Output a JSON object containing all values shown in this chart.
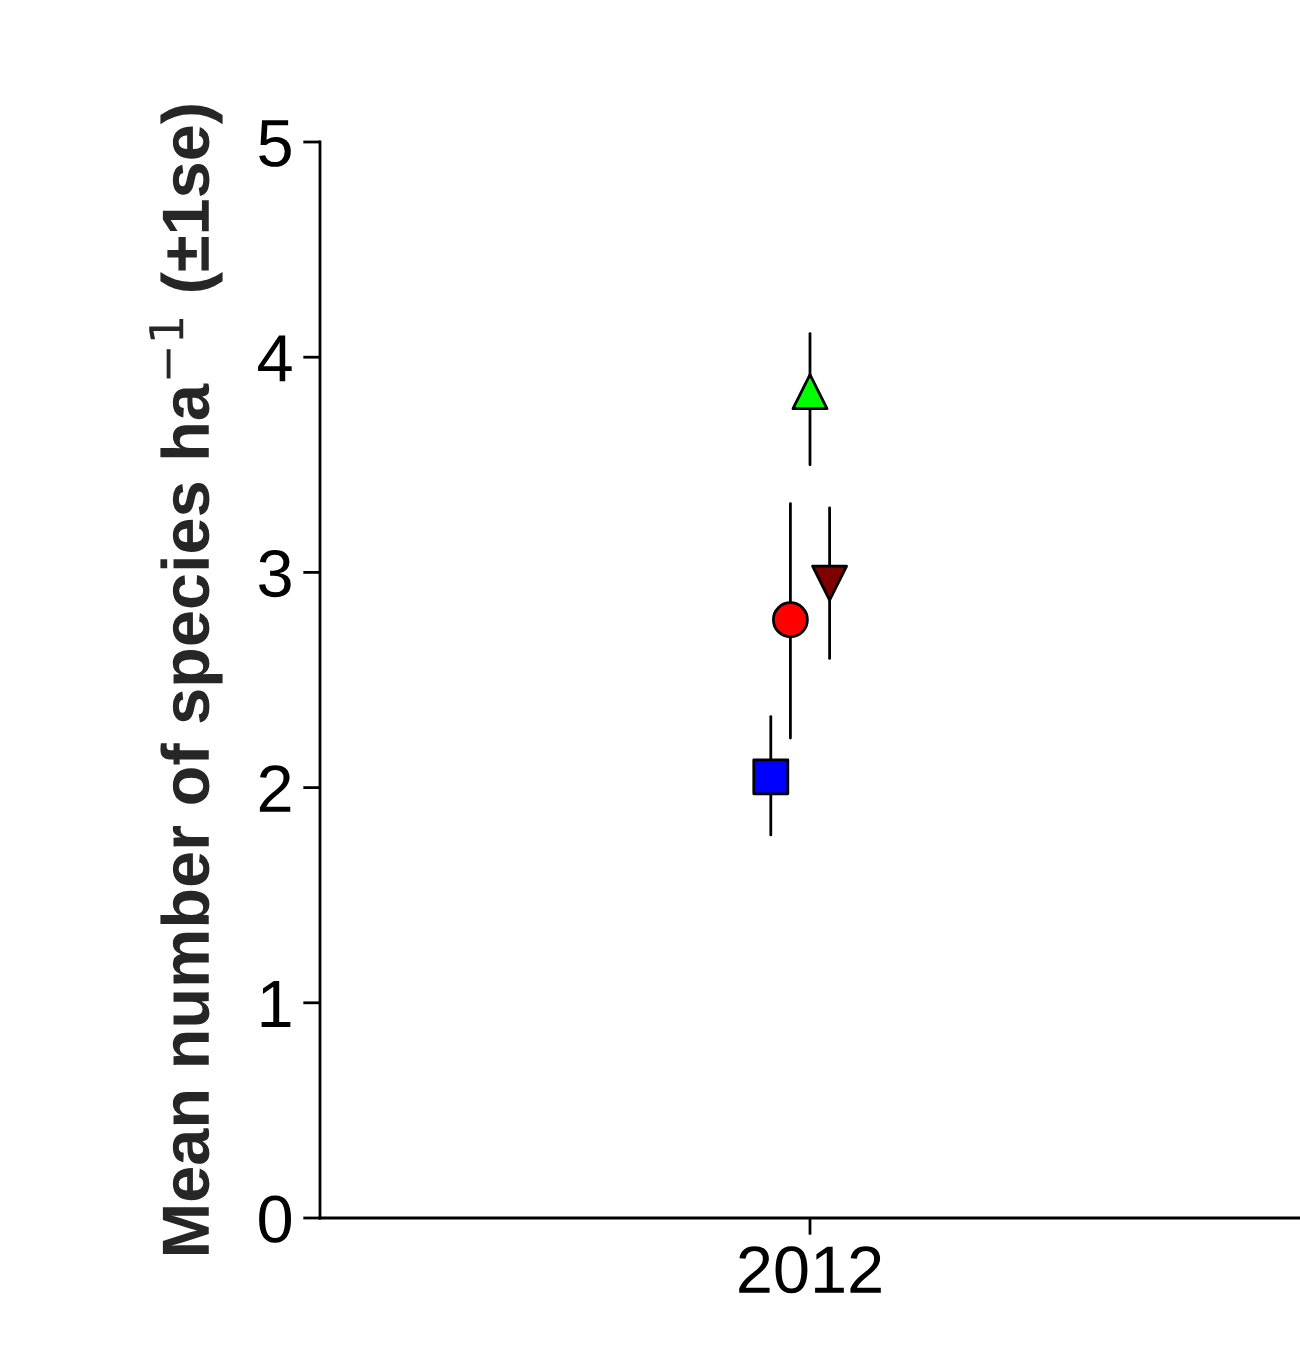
{
  "chart_data": {
    "type": "scatter",
    "ylabel": "Mean number of species ha$^{−1}$ (±1se)",
    "categories": [
      "2012"
    ],
    "series": [
      {
        "color": "#0000ff",
        "marker": "square",
        "values": [
          2.05
        ],
        "errors": [
          [
            1.78,
            2.33
          ]
        ]
      },
      {
        "color": "#ff0000",
        "marker": "circle",
        "values": [
          2.78
        ],
        "errors": [
          [
            2.23,
            3.32
          ]
        ]
      },
      {
        "color": "#00ff00",
        "marker": "triangle",
        "values": [
          3.84
        ],
        "errors": [
          [
            3.5,
            4.11
          ]
        ]
      },
      {
        "color": "#800000",
        "marker": "triangle_down",
        "values": [
          2.95
        ],
        "errors": [
          [
            2.6,
            3.3
          ]
        ]
      }
    ],
    "ylim": [
      0,
      5
    ],
    "yticks": [
      0,
      1,
      2,
      3,
      4,
      5
    ],
    "grid": false,
    "legend": false
  }
}
